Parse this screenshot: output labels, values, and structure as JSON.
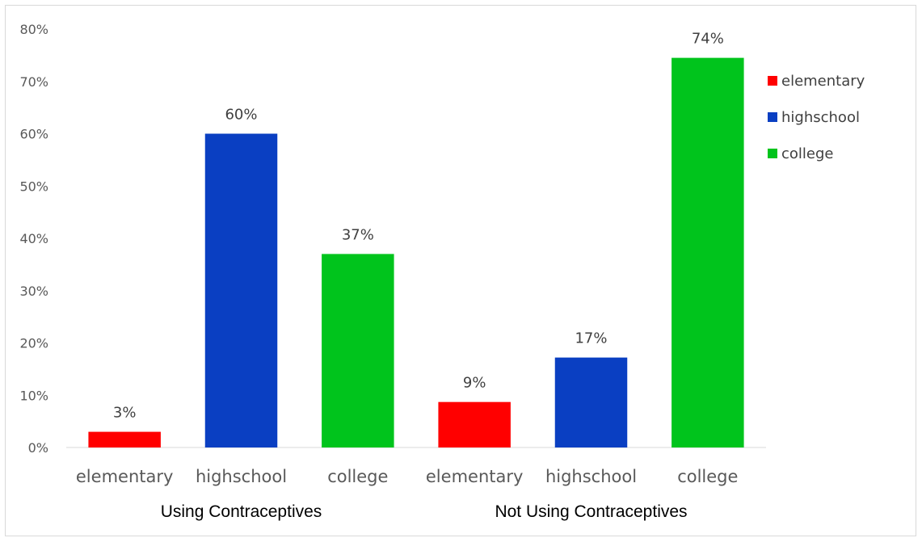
{
  "chart_data": {
    "type": "bar",
    "ylim": [
      0,
      0.8
    ],
    "ytick_values": [
      0,
      0.1,
      0.2,
      0.3,
      0.4,
      0.5,
      0.6,
      0.7,
      0.8
    ],
    "ytick_labels": [
      "0%",
      "10%",
      "20%",
      "30%",
      "40%",
      "50%",
      "60%",
      "70%",
      "80%"
    ],
    "groups": [
      {
        "label": "Using Contraceptives",
        "categories": [
          "elementary",
          "highschool",
          "college"
        ],
        "values": [
          0.03,
          0.6,
          0.37
        ],
        "data_labels": [
          "3%",
          "60%",
          "37%"
        ]
      },
      {
        "label": "Not Using Contraceptives",
        "categories": [
          "elementary",
          "highschool",
          "college"
        ],
        "values": [
          0.087,
          0.172,
          0.745
        ],
        "data_labels": [
          "9%",
          "17%",
          "74%"
        ]
      }
    ],
    "legend": {
      "placement": "right",
      "entries": [
        {
          "name": "elementary",
          "color": "#ff0000"
        },
        {
          "name": "highschool",
          "color": "#0a3fc2"
        },
        {
          "name": "college",
          "color": "#00c41c"
        }
      ]
    },
    "grid": false
  }
}
